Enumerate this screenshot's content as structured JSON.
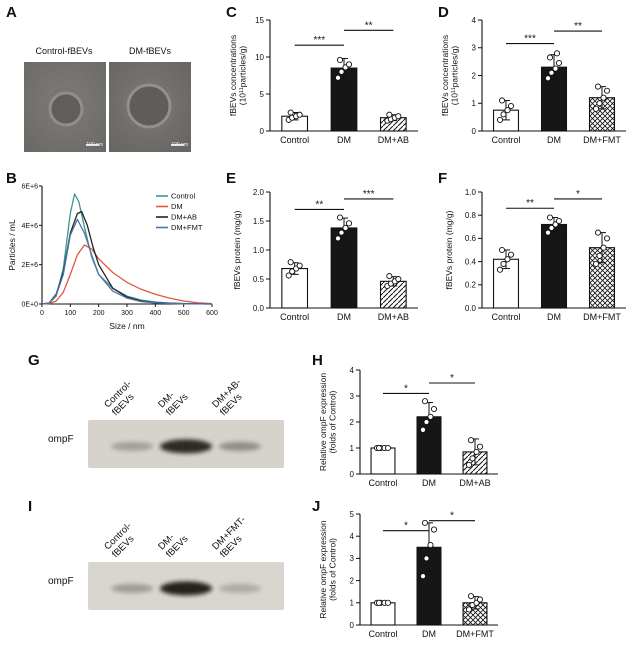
{
  "figure": {
    "panels": {
      "A": {
        "letter": "A",
        "images": [
          {
            "label": "Control-fBEVs",
            "scale_bar": "100 nm"
          },
          {
            "label": "DM-fBEVs",
            "scale_bar": "100 nm"
          }
        ]
      },
      "B": {
        "letter": "B"
      },
      "C": {
        "letter": "C"
      },
      "D": {
        "letter": "D"
      },
      "E": {
        "letter": "E"
      },
      "F": {
        "letter": "F"
      },
      "G": {
        "letter": "G"
      },
      "H": {
        "letter": "H"
      },
      "I": {
        "letter": "I"
      },
      "J": {
        "letter": "J"
      }
    }
  },
  "blots": {
    "G": {
      "protein": "ompF",
      "lanes": [
        "Control-\nfBEVs",
        "DM-\nfBEVs",
        "DM+AB-\nfBEVs"
      ],
      "bands": [
        0.28,
        0.92,
        0.38
      ],
      "bg": "#d8d4cd"
    },
    "I": {
      "protein": "ompF",
      "lanes": [
        "Control-\nfBEVs",
        "DM-\nfBEVs",
        "DM+FMT-\nfBEVs"
      ],
      "bands": [
        0.3,
        0.97,
        0.22
      ],
      "bg": "#dad6d0"
    }
  },
  "chart_data": [
    {
      "id": "B",
      "type": "line",
      "title": "",
      "xlabel": "Size / nm",
      "ylabel": "Particles / mL",
      "xlim": [
        0,
        600
      ],
      "ylim": [
        0,
        6000000
      ],
      "xticks": [
        0,
        100,
        200,
        300,
        400,
        500,
        600
      ],
      "yticks": [
        0,
        2000000,
        4000000,
        6000000
      ],
      "ytick_labels": [
        "0E+0",
        "2E+6",
        "4E+6",
        "6E+6"
      ],
      "legend_position": "top-right",
      "series": [
        {
          "name": "Control",
          "color": "#3d9494",
          "x": [
            0,
            25,
            50,
            75,
            100,
            115,
            130,
            150,
            175,
            200,
            250,
            300,
            350,
            400,
            450,
            500,
            600
          ],
          "y": [
            0,
            50000,
            400000,
            1800000,
            4600000,
            5600000,
            5200000,
            3900000,
            2400000,
            1500000,
            800000,
            400000,
            200000,
            100000,
            50000,
            20000,
            0
          ]
        },
        {
          "name": "DM",
          "color": "#e0593f",
          "x": [
            0,
            25,
            50,
            75,
            100,
            125,
            150,
            175,
            200,
            250,
            300,
            350,
            400,
            450,
            500,
            550,
            600
          ],
          "y": [
            0,
            20000,
            150000,
            600000,
            1500000,
            2500000,
            3000000,
            2800000,
            2300000,
            1600000,
            1100000,
            750000,
            500000,
            300000,
            150000,
            60000,
            20000
          ]
        },
        {
          "name": "DM+AB",
          "color": "#26231f",
          "x": [
            0,
            25,
            50,
            75,
            100,
            125,
            140,
            160,
            180,
            200,
            250,
            300,
            350,
            400,
            500,
            600
          ],
          "y": [
            0,
            50000,
            500000,
            1600000,
            3600000,
            4600000,
            4700000,
            4000000,
            2900000,
            2000000,
            800000,
            350000,
            150000,
            70000,
            20000,
            0
          ]
        },
        {
          "name": "DM+FMT",
          "color": "#4f74a8",
          "x": [
            0,
            25,
            50,
            75,
            100,
            125,
            150,
            175,
            200,
            250,
            300,
            350,
            400,
            500,
            600
          ],
          "y": [
            0,
            40000,
            450000,
            1500000,
            3500000,
            4300000,
            3600000,
            2500000,
            1500000,
            650000,
            300000,
            120000,
            60000,
            10000,
            0
          ]
        }
      ]
    },
    {
      "id": "C",
      "type": "bar",
      "categories": [
        "Control",
        "DM",
        "DM+AB"
      ],
      "values": [
        2.0,
        8.5,
        1.8
      ],
      "errors": [
        0.5,
        1.3,
        0.4
      ],
      "points": [
        [
          1.5,
          1.8,
          2.0,
          2.2,
          2.5
        ],
        [
          7.2,
          8.0,
          8.6,
          9.0,
          9.6
        ],
        [
          1.4,
          1.6,
          1.8,
          2.0,
          2.2
        ]
      ],
      "bar_styles": [
        "open",
        "solid",
        "diag"
      ],
      "ylabel": [
        "fBEVs concentrations",
        "(10¹¹particles/g)"
      ],
      "ylim": [
        0,
        15
      ],
      "yticks": [
        0,
        5,
        10,
        15
      ],
      "ytick_labels": [
        "0",
        "5",
        "10",
        "15"
      ],
      "sigs": [
        {
          "from": 0,
          "to": 1,
          "label": "***",
          "y": 11.6
        },
        {
          "from": 1,
          "to": 2,
          "label": "**",
          "y": 13.6
        }
      ]
    },
    {
      "id": "D",
      "type": "bar",
      "categories": [
        "Control",
        "DM",
        "DM+FMT"
      ],
      "values": [
        0.75,
        2.3,
        1.2
      ],
      "errors": [
        0.35,
        0.45,
        0.4
      ],
      "points": [
        [
          0.4,
          0.6,
          0.75,
          0.9,
          1.1
        ],
        [
          1.9,
          2.1,
          2.25,
          2.45,
          2.65,
          2.8
        ],
        [
          0.8,
          1.0,
          1.2,
          1.45,
          1.6
        ]
      ],
      "bar_styles": [
        "open",
        "solid",
        "cross"
      ],
      "ylabel": [
        "fBEVs concentrations",
        "(10¹¹particles/g)"
      ],
      "ylim": [
        0,
        4
      ],
      "yticks": [
        0,
        1,
        2,
        3,
        4
      ],
      "ytick_labels": [
        "0",
        "1",
        "2",
        "3",
        "4"
      ],
      "sigs": [
        {
          "from": 0,
          "to": 1,
          "label": "***",
          "y": 3.15
        },
        {
          "from": 1,
          "to": 2,
          "label": "**",
          "y": 3.6
        }
      ]
    },
    {
      "id": "E",
      "type": "bar",
      "categories": [
        "Control",
        "DM",
        "DM+AB"
      ],
      "values": [
        0.68,
        1.38,
        0.46
      ],
      "errors": [
        0.1,
        0.17,
        0.08
      ],
      "points": [
        [
          0.56,
          0.63,
          0.68,
          0.73,
          0.79
        ],
        [
          1.2,
          1.3,
          1.38,
          1.46,
          1.56
        ],
        [
          0.38,
          0.42,
          0.46,
          0.5,
          0.55
        ]
      ],
      "bar_styles": [
        "open",
        "solid",
        "diag"
      ],
      "ylabel": [
        "fBEVs protein (mg/g)"
      ],
      "ylim": [
        0,
        2
      ],
      "yticks": [
        0,
        0.5,
        1,
        1.5,
        2
      ],
      "ytick_labels": [
        "0.0",
        "0.5",
        "1.0",
        "1.5",
        "2.0"
      ],
      "sigs": [
        {
          "from": 0,
          "to": 1,
          "label": "**",
          "y": 1.7
        },
        {
          "from": 1,
          "to": 2,
          "label": "***",
          "y": 1.88
        }
      ]
    },
    {
      "id": "F",
      "type": "bar",
      "categories": [
        "Control",
        "DM",
        "DM+FMT"
      ],
      "values": [
        0.42,
        0.72,
        0.52
      ],
      "errors": [
        0.08,
        0.06,
        0.13
      ],
      "points": [
        [
          0.33,
          0.38,
          0.42,
          0.46,
          0.5
        ],
        [
          0.65,
          0.69,
          0.72,
          0.75,
          0.78
        ],
        [
          0.38,
          0.45,
          0.52,
          0.6,
          0.65
        ]
      ],
      "bar_styles": [
        "open",
        "solid",
        "cross"
      ],
      "ylabel": [
        "fBEVs protein (mg/g)"
      ],
      "ylim": [
        0,
        1
      ],
      "yticks": [
        0,
        0.2,
        0.4,
        0.6,
        0.8,
        1
      ],
      "ytick_labels": [
        "0.0",
        "0.2",
        "0.4",
        "0.6",
        "0.8",
        "1.0"
      ],
      "sigs": [
        {
          "from": 0,
          "to": 1,
          "label": "**",
          "y": 0.86
        },
        {
          "from": 1,
          "to": 2,
          "label": "*",
          "y": 0.94
        }
      ]
    },
    {
      "id": "H",
      "type": "bar",
      "categories": [
        "Control",
        "DM",
        "DM+AB"
      ],
      "values": [
        1.0,
        2.2,
        0.85
      ],
      "errors": [
        0.04,
        0.55,
        0.5
      ],
      "points": [
        [
          1.0,
          1.0,
          1.0,
          1.0,
          1.0
        ],
        [
          1.7,
          2.0,
          2.2,
          2.5,
          2.8
        ],
        [
          0.35,
          0.6,
          0.85,
          1.05,
          1.3
        ]
      ],
      "bar_styles": [
        "open",
        "solid",
        "diag"
      ],
      "ylabel": [
        "Relative ompF expression",
        "(folds of Control)"
      ],
      "ylim": [
        0,
        4
      ],
      "yticks": [
        0,
        1,
        2,
        3,
        4
      ],
      "ytick_labels": [
        "0",
        "1",
        "2",
        "3",
        "4"
      ],
      "sigs": [
        {
          "from": 0,
          "to": 1,
          "label": "*",
          "y": 3.1
        },
        {
          "from": 1,
          "to": 2,
          "label": "*",
          "y": 3.5
        }
      ]
    },
    {
      "id": "J",
      "type": "bar",
      "categories": [
        "Control",
        "DM",
        "DM+FMT"
      ],
      "values": [
        1.0,
        3.5,
        1.0
      ],
      "errors": [
        0.06,
        1.1,
        0.28
      ],
      "points": [
        [
          1.0,
          1.0,
          1.0,
          1.0,
          1.0
        ],
        [
          2.2,
          3.0,
          3.6,
          4.3,
          4.6
        ],
        [
          0.7,
          0.9,
          1.0,
          1.15,
          1.3
        ]
      ],
      "bar_styles": [
        "open",
        "solid",
        "cross"
      ],
      "ylabel": [
        "Relative ompF expression",
        "(folds of Control)"
      ],
      "ylim": [
        0,
        5
      ],
      "yticks": [
        0,
        1,
        2,
        3,
        4,
        5
      ],
      "ytick_labels": [
        "0",
        "1",
        "2",
        "3",
        "4",
        "5"
      ],
      "sigs": [
        {
          "from": 0,
          "to": 1,
          "label": "*",
          "y": 4.25
        },
        {
          "from": 1,
          "to": 2,
          "label": "*",
          "y": 4.7
        }
      ]
    }
  ]
}
